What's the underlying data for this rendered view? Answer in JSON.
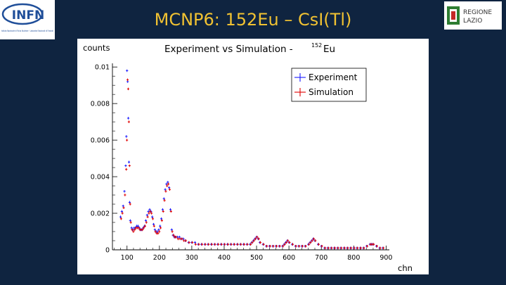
{
  "slide": {
    "title": "MCNP6: 152Eu – CsI(Tl)",
    "logo_left_text": "INFN",
    "logo_left_subtext": "Istituto Nazionale di Fisica Nucleare · Laboratori Nazionali di Frascati",
    "logo_right_text_line1": "REGIONE",
    "logo_right_text_line2": "LAZIO"
  },
  "chart_data": {
    "type": "scatter",
    "title": "Experiment vs Simulation -",
    "title_isotope_mass": "152",
    "title_isotope_symbol": "Eu",
    "xlabel": "chn",
    "ylabel": "counts",
    "xlim": [
      55,
      910
    ],
    "ylim": [
      0,
      0.0102
    ],
    "x_ticks": [
      100,
      200,
      300,
      400,
      500,
      600,
      700,
      800,
      900
    ],
    "y_ticks": [
      0,
      0.002,
      0.004,
      0.006,
      0.008,
      0.01
    ],
    "y_tick_labels": [
      "0",
      "0.002",
      "0.004",
      "0.006",
      "0.008",
      "0.01"
    ],
    "legend": "top-right",
    "grid": false,
    "series": [
      {
        "name": "Experiment",
        "color": "#1a1aff",
        "x": [
          80,
          84,
          88,
          92,
          96,
          98,
          100,
          102,
          104,
          106,
          108,
          110,
          114,
          118,
          122,
          126,
          130,
          134,
          138,
          142,
          146,
          150,
          154,
          158,
          162,
          166,
          170,
          174,
          178,
          182,
          186,
          190,
          194,
          198,
          202,
          206,
          210,
          214,
          218,
          222,
          226,
          230,
          234,
          238,
          242,
          246,
          250,
          256,
          262,
          268,
          274,
          280,
          290,
          300,
          310,
          320,
          330,
          340,
          350,
          360,
          370,
          380,
          390,
          400,
          410,
          420,
          430,
          440,
          450,
          460,
          470,
          480,
          485,
          490,
          495,
          500,
          505,
          510,
          520,
          530,
          540,
          550,
          560,
          570,
          580,
          585,
          590,
          595,
          600,
          610,
          620,
          630,
          640,
          650,
          660,
          665,
          670,
          675,
          680,
          690,
          700,
          710,
          720,
          730,
          740,
          750,
          760,
          770,
          780,
          790,
          800,
          810,
          820,
          830,
          840,
          850,
          855,
          860,
          870,
          880,
          890
        ],
        "values": [
          0.0018,
          0.0021,
          0.0024,
          0.0032,
          0.0046,
          0.0062,
          0.0098,
          0.0092,
          0.0072,
          0.0048,
          0.0026,
          0.0016,
          0.0012,
          0.0011,
          0.0012,
          0.0012,
          0.0013,
          0.0013,
          0.0012,
          0.0011,
          0.0011,
          0.0012,
          0.0013,
          0.0016,
          0.0019,
          0.0021,
          0.0022,
          0.0021,
          0.0018,
          0.0014,
          0.0011,
          0.001,
          0.001,
          0.0011,
          0.0013,
          0.0017,
          0.0022,
          0.0028,
          0.0033,
          0.0036,
          0.0037,
          0.0034,
          0.0022,
          0.0011,
          0.0008,
          0.0007,
          0.0007,
          0.0007,
          0.0007,
          0.0006,
          0.0006,
          0.0005,
          0.0004,
          0.0004,
          0.0004,
          0.0003,
          0.0003,
          0.0003,
          0.0003,
          0.0003,
          0.0003,
          0.0003,
          0.0003,
          0.0003,
          0.0003,
          0.0003,
          0.0003,
          0.0003,
          0.0003,
          0.0003,
          0.0003,
          0.0003,
          0.0004,
          0.0005,
          0.0006,
          0.0007,
          0.0006,
          0.0004,
          0.0003,
          0.0002,
          0.0002,
          0.0002,
          0.0002,
          0.0002,
          0.0002,
          0.0003,
          0.0004,
          0.0005,
          0.0004,
          0.0003,
          0.0002,
          0.0002,
          0.0002,
          0.0002,
          0.0003,
          0.0004,
          0.0005,
          0.0006,
          0.0005,
          0.0003,
          0.0002,
          0.0001,
          0.0001,
          0.0001,
          0.0001,
          0.0001,
          0.0001,
          0.0001,
          0.0001,
          0.0001,
          0.0001,
          0.0001,
          0.0001,
          0.0001,
          0.0002,
          0.0003,
          0.0003,
          0.0003,
          0.0002,
          0.0001,
          0.0001
        ]
      },
      {
        "name": "Simulation",
        "color": "#e00000",
        "x": [
          80,
          84,
          88,
          92,
          96,
          98,
          100,
          102,
          104,
          106,
          108,
          110,
          114,
          118,
          122,
          126,
          130,
          134,
          138,
          142,
          146,
          150,
          154,
          158,
          162,
          166,
          170,
          174,
          178,
          182,
          186,
          190,
          194,
          198,
          202,
          206,
          210,
          214,
          218,
          222,
          226,
          230,
          234,
          238,
          242,
          246,
          250,
          256,
          262,
          268,
          274,
          280,
          290,
          300,
          310,
          320,
          330,
          340,
          350,
          360,
          370,
          380,
          390,
          400,
          410,
          420,
          430,
          440,
          450,
          460,
          470,
          480,
          485,
          490,
          495,
          500,
          505,
          510,
          520,
          530,
          540,
          550,
          560,
          570,
          580,
          585,
          590,
          595,
          600,
          610,
          620,
          630,
          640,
          650,
          660,
          665,
          670,
          675,
          680,
          690,
          700,
          710,
          720,
          730,
          740,
          750,
          760,
          770,
          780,
          790,
          800,
          810,
          820,
          830,
          840,
          850,
          855,
          860,
          870,
          880,
          890
        ],
        "values": [
          0.0017,
          0.002,
          0.0023,
          0.003,
          0.0044,
          0.006,
          0.0093,
          0.0088,
          0.007,
          0.0046,
          0.0025,
          0.0015,
          0.0011,
          0.001,
          0.0011,
          0.0012,
          0.0012,
          0.0012,
          0.0011,
          0.0011,
          0.0011,
          0.0012,
          0.0013,
          0.0015,
          0.0018,
          0.002,
          0.0021,
          0.002,
          0.0017,
          0.0013,
          0.001,
          0.0009,
          0.0009,
          0.001,
          0.0012,
          0.0016,
          0.0021,
          0.0027,
          0.0032,
          0.0035,
          0.0036,
          0.0033,
          0.0021,
          0.001,
          0.0008,
          0.0007,
          0.0007,
          0.0006,
          0.0006,
          0.0006,
          0.0005,
          0.0005,
          0.0004,
          0.0004,
          0.0003,
          0.0003,
          0.0003,
          0.0003,
          0.0003,
          0.0003,
          0.0003,
          0.0003,
          0.0003,
          0.0003,
          0.0003,
          0.0003,
          0.0003,
          0.0003,
          0.0003,
          0.0003,
          0.0003,
          0.0003,
          0.0004,
          0.0005,
          0.0006,
          0.0007,
          0.0006,
          0.0004,
          0.0003,
          0.0002,
          0.0002,
          0.0002,
          0.0002,
          0.0002,
          0.0002,
          0.0003,
          0.0004,
          0.0005,
          0.0004,
          0.0003,
          0.0002,
          0.0002,
          0.0002,
          0.0002,
          0.0003,
          0.0004,
          0.0005,
          0.0006,
          0.0005,
          0.0003,
          0.0002,
          0.0001,
          0.0001,
          0.0001,
          0.0001,
          0.0001,
          0.0001,
          0.0001,
          0.0001,
          0.0001,
          0.0001,
          0.0001,
          0.0001,
          0.0001,
          0.0002,
          0.0003,
          0.0003,
          0.0003,
          0.0002,
          0.0001,
          0.0001
        ]
      }
    ]
  }
}
